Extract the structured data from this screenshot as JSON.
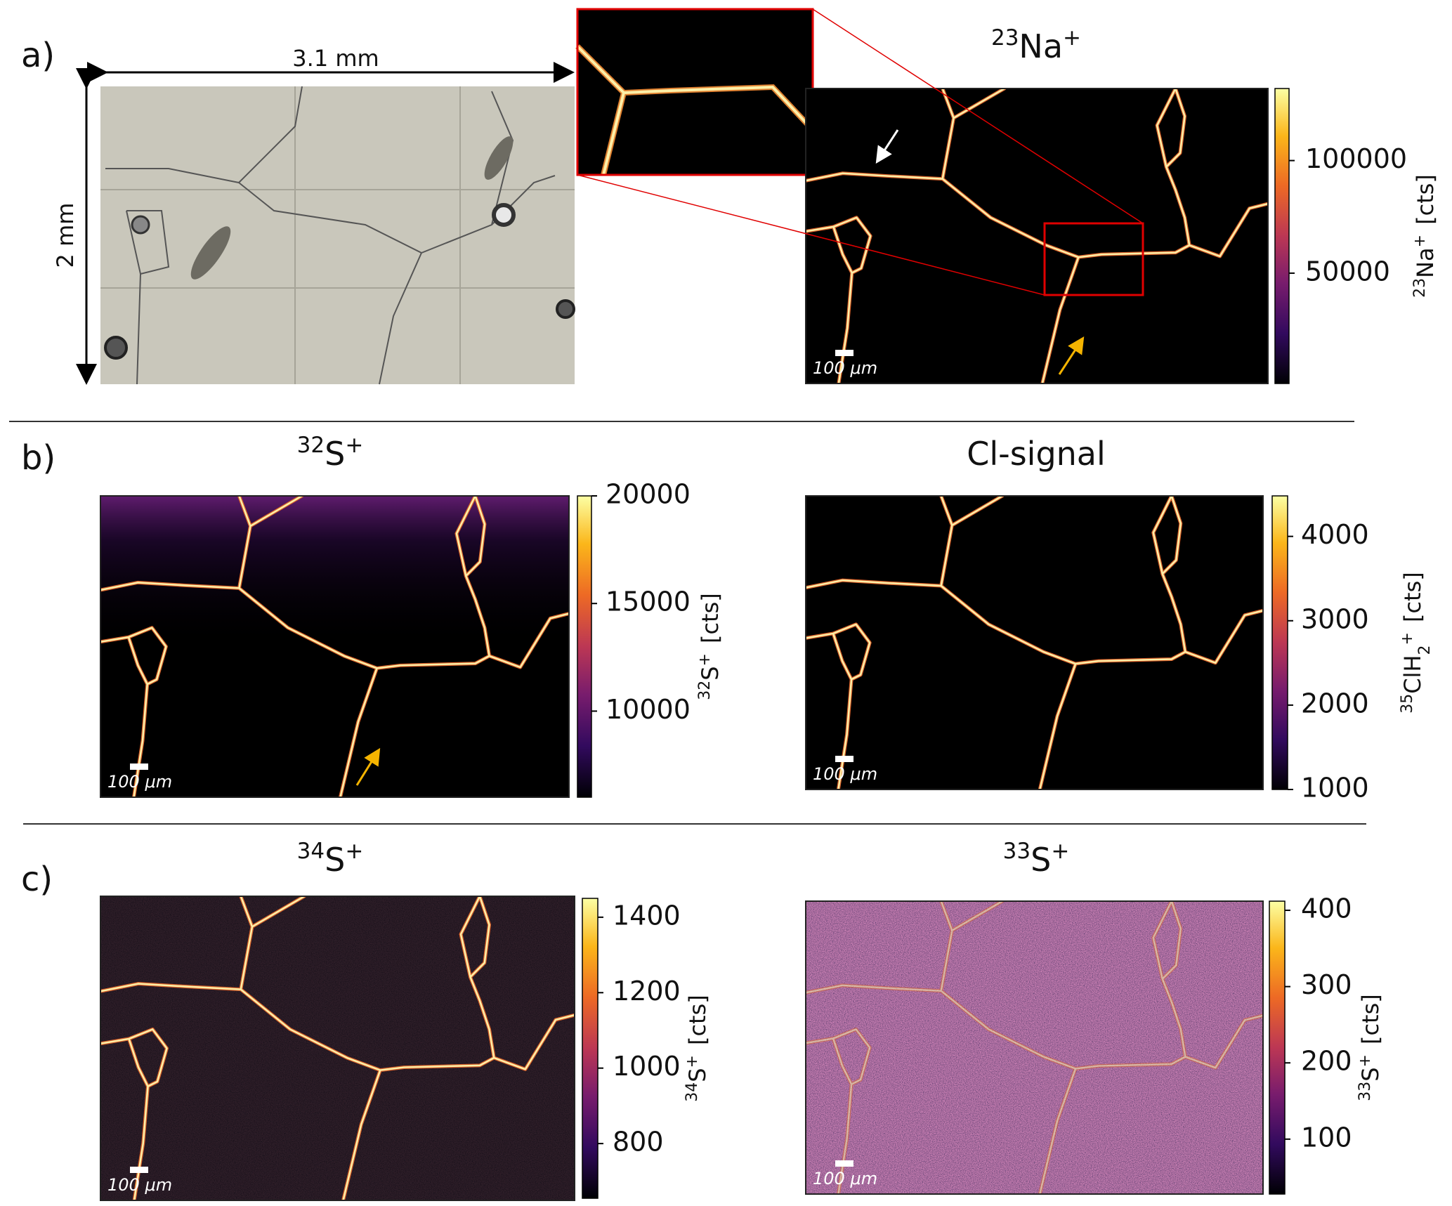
{
  "panel_labels": [
    "a)",
    "b)",
    "c)"
  ],
  "photo": {
    "width_label": "3.1 mm",
    "height_label": "2 mm"
  },
  "maps": [
    {
      "title": {
        "mass": "23",
        "element": "Na",
        "charge": "+"
      },
      "scale_bar": "100 μm",
      "colorbar": {
        "label": {
          "mass": "23",
          "element": "Na",
          "charge": "+",
          "unit": "[cts]"
        },
        "range": [
          1000,
          132000
        ],
        "ticks": [
          50000,
          100000
        ]
      }
    },
    {
      "title": {
        "mass": "32",
        "element": "S",
        "charge": "+"
      },
      "scale_bar": "100 μm",
      "colorbar": {
        "label": {
          "mass": "32",
          "element": "S",
          "charge": "+",
          "unit": "[cts]"
        },
        "range": [
          6000,
          20000
        ],
        "ticks": [
          10000,
          15000,
          20000
        ]
      }
    },
    {
      "title": {
        "text": "Cl-signal"
      },
      "scale_bar": "100 μm",
      "colorbar": {
        "label": {
          "mass": "35",
          "element": "ClH",
          "subscript": "2",
          "charge": "+",
          "unit": "[cts]"
        },
        "range": [
          1000,
          4480
        ],
        "ticks": [
          1000,
          2000,
          3000,
          4000
        ]
      }
    },
    {
      "title": {
        "mass": "34",
        "element": "S",
        "charge": "+"
      },
      "scale_bar": "100 μm",
      "colorbar": {
        "label": {
          "mass": "34",
          "element": "S",
          "charge": "+",
          "unit": "[cts]"
        },
        "range": [
          655,
          1450
        ],
        "ticks": [
          800,
          1000,
          1200,
          1400
        ]
      }
    },
    {
      "title": {
        "mass": "33",
        "element": "S",
        "charge": "+"
      },
      "scale_bar": "100 μm",
      "colorbar": {
        "label": {
          "mass": "33",
          "element": "S",
          "charge": "+",
          "unit": "[cts]"
        },
        "range": [
          28,
          412
        ],
        "ticks": [
          100,
          200,
          300,
          400
        ]
      }
    }
  ]
}
